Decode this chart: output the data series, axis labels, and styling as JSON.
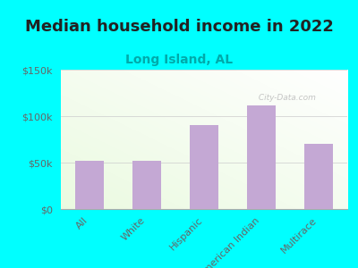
{
  "title": "Median household income in 2022",
  "subtitle": "Long Island, AL",
  "categories": [
    "All",
    "White",
    "Hispanic",
    "American Indian",
    "Multirace"
  ],
  "values": [
    52000,
    52000,
    90000,
    112000,
    70000
  ],
  "bar_color": "#C4A8D4",
  "background_color": "#00FFFF",
  "title_color": "#222222",
  "subtitle_color": "#00AAAA",
  "tick_label_color": "#666666",
  "watermark": " City-Data.com",
  "ylim": [
    0,
    150000
  ],
  "yticks": [
    0,
    50000,
    100000,
    150000
  ],
  "ytick_labels": [
    "$0",
    "$50k",
    "$100k",
    "$150k"
  ],
  "title_fontsize": 13,
  "subtitle_fontsize": 10,
  "tick_fontsize": 8,
  "watermark_color": "#BBBBBB",
  "grid_color": "#CCCCCC",
  "spine_color": "#AAAAAA"
}
